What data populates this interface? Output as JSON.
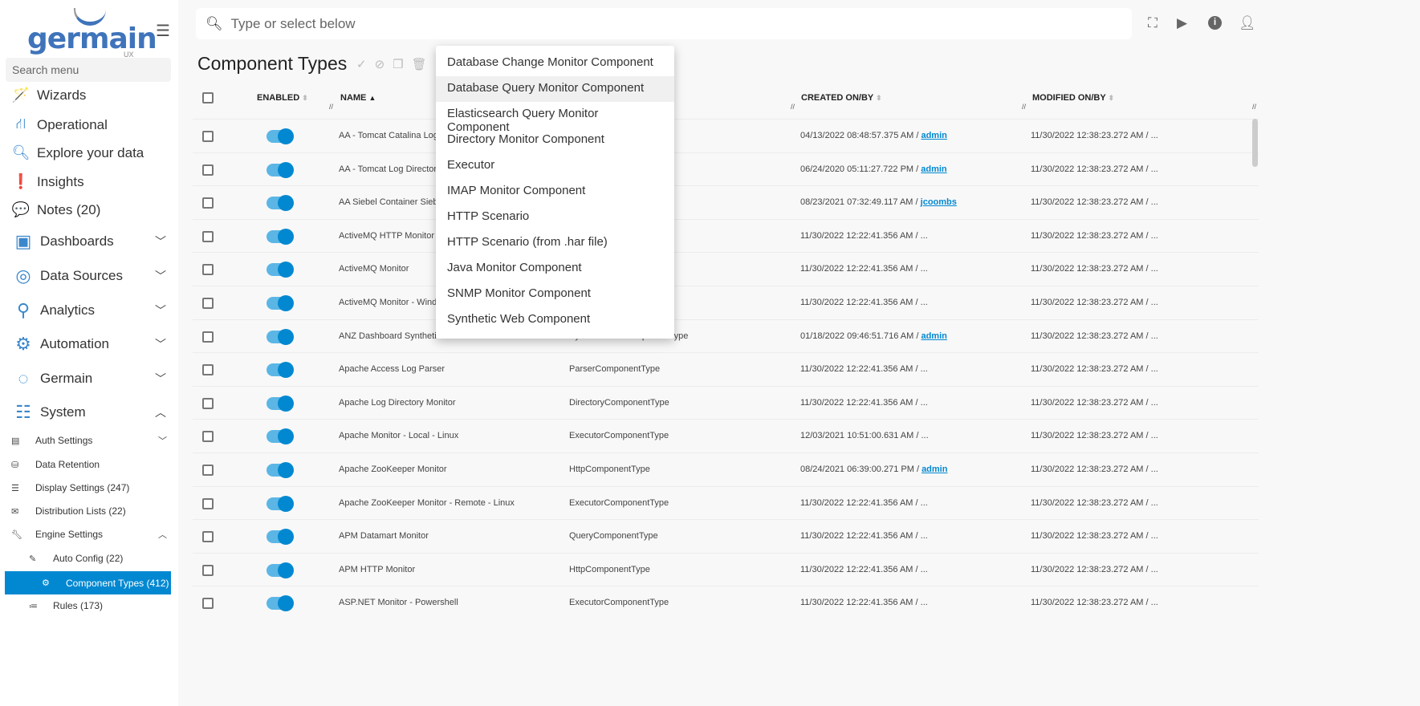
{
  "logo": {
    "text": "germain",
    "sub": "UX"
  },
  "sidebar": {
    "search_placeholder": "Search menu",
    "items": [
      {
        "label": "Wizards",
        "icon": "magic-wand-icon"
      },
      {
        "label": "Operational",
        "icon": "sitemap-icon"
      },
      {
        "label": "Explore your data",
        "icon": "search-icon"
      },
      {
        "label": "Insights",
        "icon": "exclamation-icon"
      },
      {
        "label": "Notes (20)",
        "icon": "comment-icon"
      }
    ],
    "groups": [
      {
        "label": "Dashboards",
        "expanded": false
      },
      {
        "label": "Data Sources",
        "expanded": false
      },
      {
        "label": "Analytics",
        "expanded": false
      },
      {
        "label": "Automation",
        "expanded": false
      },
      {
        "label": "Germain",
        "expanded": false
      },
      {
        "label": "System",
        "expanded": true
      }
    ],
    "sub": [
      {
        "label": "Auth Settings"
      },
      {
        "label": "Data Retention"
      },
      {
        "label": "Display Settings (247)"
      },
      {
        "label": "Distribution Lists (22)"
      },
      {
        "label": "Engine Settings"
      },
      {
        "label": "Auto Config (22)"
      },
      {
        "label": "Component Types (412)",
        "active": true
      },
      {
        "label": "Rules (173)"
      }
    ]
  },
  "topbar": {
    "search_placeholder": "Type or select below"
  },
  "page": {
    "title": "Component Types"
  },
  "table": {
    "headers": {
      "enabled": "ENABLED",
      "name": "NAME",
      "created": "CREATED ON/BY",
      "modified": "MODIFIED ON/BY"
    },
    "rows": [
      {
        "name": "AA - Tomcat Catalina Log",
        "type": "",
        "created": "04/13/2022 08:48:57.375 AM / ",
        "by": "admin",
        "modified": "11/30/2022 12:38:23.272 AM / ..."
      },
      {
        "name": "AA - Tomcat Log Directory",
        "type": "",
        "created": "06/24/2020 05:11:27.722 PM / ",
        "by": "admin",
        "modified": "11/30/2022 12:38:23.272 AM / ..."
      },
      {
        "name": "AA Siebel Container Siebel",
        "type": "",
        "created": "08/23/2021 07:32:49.117 AM / ",
        "by": "jcoombs",
        "modified": "11/30/2022 12:38:23.272 AM / ..."
      },
      {
        "name": "ActiveMQ HTTP Monitor",
        "type": "",
        "created": "11/30/2022 12:22:41.356 AM / ...",
        "by": "",
        "modified": "11/30/2022 12:38:23.272 AM / ..."
      },
      {
        "name": "ActiveMQ Monitor",
        "type": "",
        "created": "11/30/2022 12:22:41.356 AM / ...",
        "by": "",
        "modified": "11/30/2022 12:38:23.272 AM / ..."
      },
      {
        "name": "ActiveMQ Monitor - Windows",
        "type": "",
        "created": "11/30/2022 12:22:41.356 AM / ...",
        "by": "",
        "modified": "11/30/2022 12:38:23.272 AM / ..."
      },
      {
        "name": "ANZ Dashboard Synthetic Monitor",
        "type": "SyntheticWebComponentType",
        "created": "01/18/2022 09:46:51.716 AM / ",
        "by": "admin",
        "modified": "11/30/2022 12:38:23.272 AM / ..."
      },
      {
        "name": "Apache Access Log Parser",
        "type": "ParserComponentType",
        "created": "11/30/2022 12:22:41.356 AM / ...",
        "by": "",
        "modified": "11/30/2022 12:38:23.272 AM / ..."
      },
      {
        "name": "Apache Log Directory Monitor",
        "type": "DirectoryComponentType",
        "created": "11/30/2022 12:22:41.356 AM / ...",
        "by": "",
        "modified": "11/30/2022 12:38:23.272 AM / ..."
      },
      {
        "name": "Apache Monitor - Local - Linux",
        "type": "ExecutorComponentType",
        "created": "12/03/2021 10:51:00.631 AM / ...",
        "by": "",
        "modified": "11/30/2022 12:38:23.272 AM / ..."
      },
      {
        "name": "Apache ZooKeeper Monitor",
        "type": "HttpComponentType",
        "created": "08/24/2021 06:39:00.271 PM / ",
        "by": "admin",
        "modified": "11/30/2022 12:38:23.272 AM / ..."
      },
      {
        "name": "Apache ZooKeeper Monitor - Remote - Linux",
        "type": "ExecutorComponentType",
        "created": "11/30/2022 12:22:41.356 AM / ...",
        "by": "",
        "modified": "11/30/2022 12:38:23.272 AM / ..."
      },
      {
        "name": "APM Datamart Monitor",
        "type": "QueryComponentType",
        "created": "11/30/2022 12:22:41.356 AM / ...",
        "by": "",
        "modified": "11/30/2022 12:38:23.272 AM / ..."
      },
      {
        "name": "APM HTTP Monitor",
        "type": "HttpComponentType",
        "created": "11/30/2022 12:22:41.356 AM / ...",
        "by": "",
        "modified": "11/30/2022 12:38:23.272 AM / ..."
      },
      {
        "name": "ASP.NET Monitor - Powershell",
        "type": "ExecutorComponentType",
        "created": "11/30/2022 12:22:41.356 AM / ...",
        "by": "",
        "modified": "11/30/2022 12:38:23.272 AM / ..."
      }
    ]
  },
  "dropdown": {
    "highlighted": 1,
    "items": [
      "Database Change Monitor Component",
      "Database Query Monitor Component",
      "Elasticsearch Query Monitor Component",
      "Directory Monitor Component",
      "Executor",
      "IMAP Monitor Component",
      "HTTP Scenario",
      "HTTP Scenario (from .har file)",
      "Java Monitor Component",
      "SNMP Monitor Component",
      "Synthetic Web Component"
    ]
  },
  "colors": {
    "accent": "#0288d1",
    "logo": "#3f74bb"
  }
}
